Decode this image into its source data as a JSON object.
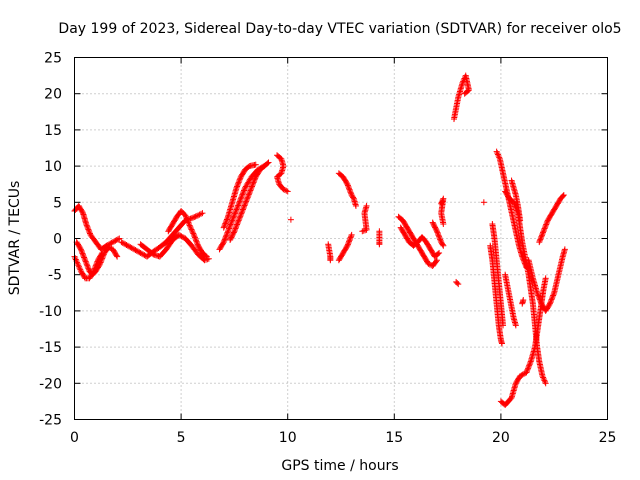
{
  "chart_data": {
    "type": "scatter",
    "title": "Day 199 of 2023, Sidereal Day-to-day VTEC variation (SDTVAR) for receiver olo5",
    "xlabel": "GPS time / hours",
    "ylabel": "SDTVAR / TECUs",
    "xlim": [
      0,
      25
    ],
    "ylim": [
      -25,
      25
    ],
    "xticks": [
      0,
      5,
      10,
      15,
      20,
      25
    ],
    "yticks": [
      -25,
      -20,
      -15,
      -10,
      -5,
      0,
      5,
      10,
      15,
      20,
      25
    ],
    "marker": "+",
    "color": "#ff0000",
    "grid": true,
    "tracks": [
      {
        "name": "track-01",
        "points": [
          [
            0.0,
            3.8
          ],
          [
            0.2,
            4.5
          ],
          [
            0.4,
            3.5
          ],
          [
            0.55,
            2.0
          ],
          [
            0.75,
            0.5
          ],
          [
            1.0,
            -0.5
          ],
          [
            1.25,
            -1.5
          ],
          [
            1.5,
            -1.0
          ],
          [
            1.8,
            -0.5
          ],
          [
            2.1,
            0.0
          ]
        ]
      },
      {
        "name": "track-02",
        "points": [
          [
            0.1,
            -0.5
          ],
          [
            0.3,
            -1.5
          ],
          [
            0.5,
            -3.0
          ],
          [
            0.7,
            -4.5
          ],
          [
            0.85,
            -5.0
          ],
          [
            1.0,
            -4.5
          ],
          [
            1.2,
            -3.5
          ],
          [
            1.4,
            -2.0
          ],
          [
            1.6,
            -1.2
          ],
          [
            1.8,
            -1.5
          ],
          [
            2.0,
            -2.5
          ]
        ]
      },
      {
        "name": "track-03",
        "points": [
          [
            0.0,
            -2.5
          ],
          [
            0.15,
            -3.5
          ],
          [
            0.3,
            -4.5
          ],
          [
            0.5,
            -5.5
          ],
          [
            0.7,
            -5.5
          ],
          [
            0.9,
            -4.5
          ],
          [
            1.1,
            -3.0
          ],
          [
            1.3,
            -2.0
          ]
        ]
      },
      {
        "name": "track-04",
        "points": [
          [
            2.2,
            -0.5
          ],
          [
            2.5,
            -1.0
          ],
          [
            2.8,
            -1.5
          ],
          [
            3.1,
            -2.0
          ],
          [
            3.4,
            -2.5
          ],
          [
            3.7,
            -1.8
          ],
          [
            4.0,
            -1.2
          ],
          [
            4.3,
            -0.5
          ],
          [
            4.6,
            0.5
          ],
          [
            4.9,
            1.5
          ],
          [
            5.2,
            2.5
          ],
          [
            5.5,
            2.8
          ],
          [
            5.8,
            3.2
          ],
          [
            6.0,
            3.5
          ]
        ]
      },
      {
        "name": "track-05",
        "points": [
          [
            3.1,
            -0.8
          ],
          [
            3.4,
            -1.5
          ],
          [
            3.7,
            -2.2
          ],
          [
            4.0,
            -2.5
          ],
          [
            4.3,
            -1.5
          ],
          [
            4.6,
            -0.2
          ],
          [
            4.9,
            0.5
          ],
          [
            5.2,
            0.0
          ],
          [
            5.5,
            -1.0
          ],
          [
            5.8,
            -2.2
          ],
          [
            6.1,
            -3.0
          ],
          [
            6.3,
            -2.8
          ]
        ]
      },
      {
        "name": "track-06",
        "points": [
          [
            4.4,
            1.0
          ],
          [
            4.6,
            2.0
          ],
          [
            4.8,
            3.0
          ],
          [
            5.0,
            3.8
          ],
          [
            5.2,
            3.2
          ],
          [
            5.4,
            1.8
          ],
          [
            5.6,
            0.5
          ],
          [
            5.8,
            -1.0
          ],
          [
            6.0,
            -2.0
          ],
          [
            6.2,
            -2.5
          ]
        ]
      },
      {
        "name": "track-07",
        "points": [
          [
            6.8,
            -1.5
          ],
          [
            7.0,
            -0.5
          ],
          [
            7.2,
            1.0
          ],
          [
            7.4,
            2.5
          ],
          [
            7.6,
            4.0
          ],
          [
            7.8,
            5.5
          ],
          [
            8.0,
            7.0
          ],
          [
            8.3,
            8.5
          ],
          [
            8.6,
            9.5
          ],
          [
            8.9,
            10.0
          ],
          [
            9.1,
            10.5
          ]
        ]
      },
      {
        "name": "track-08",
        "points": [
          [
            7.0,
            1.5
          ],
          [
            7.2,
            3.0
          ],
          [
            7.4,
            5.0
          ],
          [
            7.6,
            7.0
          ],
          [
            7.8,
            8.5
          ],
          [
            8.0,
            9.5
          ],
          [
            8.2,
            10.0
          ],
          [
            8.5,
            10.2
          ]
        ]
      },
      {
        "name": "track-09",
        "points": [
          [
            7.3,
            -0.2
          ],
          [
            7.5,
            1.0
          ],
          [
            7.7,
            2.5
          ],
          [
            7.9,
            4.0
          ],
          [
            8.1,
            5.5
          ],
          [
            8.3,
            7.0
          ],
          [
            8.5,
            8.5
          ],
          [
            8.7,
            9.5
          ],
          [
            8.9,
            10.0
          ]
        ]
      },
      {
        "name": "track-10",
        "points": [
          [
            9.5,
            11.5
          ],
          [
            9.7,
            11.0
          ],
          [
            9.8,
            10.0
          ],
          [
            9.7,
            9.0
          ],
          [
            9.5,
            8.5
          ],
          [
            9.6,
            7.5
          ],
          [
            9.8,
            6.8
          ],
          [
            10.0,
            6.5
          ]
        ]
      },
      {
        "name": "track-11",
        "points": [
          [
            10.15,
            2.6
          ]
        ]
      },
      {
        "name": "track-12",
        "points": [
          [
            11.9,
            -0.8
          ],
          [
            12.0,
            -2.5
          ],
          [
            12.0,
            -3.0
          ]
        ]
      },
      {
        "name": "track-13",
        "points": [
          [
            12.4,
            -3.0
          ],
          [
            12.6,
            -2.0
          ],
          [
            12.8,
            -1.0
          ],
          [
            13.0,
            0.5
          ]
        ]
      },
      {
        "name": "track-14",
        "points": [
          [
            12.4,
            9.0
          ],
          [
            12.6,
            8.5
          ],
          [
            12.8,
            7.5
          ],
          [
            13.0,
            6.0
          ],
          [
            13.1,
            5.5
          ],
          [
            13.2,
            4.5
          ]
        ]
      },
      {
        "name": "track-15",
        "points": [
          [
            13.5,
            1.0
          ],
          [
            13.7,
            1.2
          ],
          [
            13.6,
            3.5
          ],
          [
            13.7,
            4.5
          ]
        ]
      },
      {
        "name": "track-16",
        "points": [
          [
            14.3,
            1.0
          ],
          [
            14.3,
            -0.5
          ],
          [
            14.3,
            -0.8
          ]
        ]
      },
      {
        "name": "track-17",
        "points": [
          [
            15.2,
            3.0
          ],
          [
            15.4,
            2.5
          ],
          [
            15.6,
            1.5
          ],
          [
            15.8,
            0.5
          ],
          [
            16.0,
            -0.5
          ],
          [
            16.2,
            -1.5
          ],
          [
            16.4,
            -2.5
          ],
          [
            16.6,
            -3.5
          ],
          [
            16.8,
            -3.8
          ],
          [
            17.0,
            -3.0
          ]
        ]
      },
      {
        "name": "track-18",
        "points": [
          [
            15.3,
            1.5
          ],
          [
            15.5,
            0.5
          ],
          [
            15.7,
            -0.5
          ],
          [
            15.9,
            -1.0
          ],
          [
            16.1,
            -0.5
          ],
          [
            16.3,
            0.2
          ],
          [
            16.5,
            -0.5
          ],
          [
            16.7,
            -1.5
          ],
          [
            16.9,
            -2.5
          ],
          [
            17.1,
            -2.0
          ]
        ]
      },
      {
        "name": "track-19",
        "points": [
          [
            16.8,
            2.2
          ],
          [
            17.0,
            1.0
          ],
          [
            17.2,
            -0.5
          ],
          [
            17.3,
            -1.0
          ]
        ]
      },
      {
        "name": "track-20",
        "points": [
          [
            17.2,
            4.8
          ],
          [
            17.3,
            5.5
          ],
          [
            17.2,
            3.5
          ],
          [
            17.3,
            2.0
          ]
        ]
      },
      {
        "name": "track-21",
        "points": [
          [
            17.8,
            16.5
          ],
          [
            17.9,
            18.0
          ],
          [
            18.0,
            19.5
          ],
          [
            18.1,
            20.5
          ],
          [
            18.2,
            21.5
          ],
          [
            18.35,
            22.5
          ],
          [
            18.5,
            20.5
          ],
          [
            18.3,
            20.0
          ]
        ]
      },
      {
        "name": "track-22",
        "points": [
          [
            17.9,
            -6.0
          ],
          [
            18.0,
            -6.3
          ]
        ]
      },
      {
        "name": "track-23",
        "points": [
          [
            19.2,
            5.0
          ]
        ]
      },
      {
        "name": "track-24",
        "points": [
          [
            19.5,
            -1.0
          ],
          [
            19.6,
            -3.0
          ],
          [
            19.7,
            -6.0
          ],
          [
            19.8,
            -9.0
          ],
          [
            19.9,
            -12.0
          ],
          [
            20.0,
            -14.0
          ],
          [
            20.05,
            -14.5
          ]
        ]
      },
      {
        "name": "track-25",
        "points": [
          [
            19.8,
            12.0
          ],
          [
            19.95,
            11.0
          ],
          [
            20.1,
            9.0
          ],
          [
            20.25,
            7.0
          ],
          [
            20.4,
            5.0
          ],
          [
            20.55,
            3.0
          ],
          [
            20.7,
            1.0
          ],
          [
            20.85,
            -1.0
          ],
          [
            21.0,
            -2.5
          ],
          [
            21.2,
            -4.0
          ]
        ]
      },
      {
        "name": "track-26",
        "points": [
          [
            19.6,
            2.0
          ],
          [
            19.7,
            0.0
          ],
          [
            19.8,
            -3.0
          ],
          [
            19.9,
            -6.0
          ],
          [
            20.0,
            -9.0
          ],
          [
            20.1,
            -12.0
          ]
        ]
      },
      {
        "name": "track-27",
        "points": [
          [
            20.0,
            -22.5
          ],
          [
            20.2,
            -23.0
          ],
          [
            20.5,
            -22.0
          ],
          [
            20.7,
            -20.0
          ],
          [
            20.9,
            -19.0
          ],
          [
            21.2,
            -18.5
          ],
          [
            21.4,
            -17.0
          ],
          [
            21.6,
            -15.0
          ],
          [
            21.7,
            -13.0
          ],
          [
            21.8,
            -11.0
          ],
          [
            21.9,
            -9.0
          ],
          [
            22.0,
            -7.0
          ],
          [
            22.1,
            -5.5
          ]
        ]
      },
      {
        "name": "track-28",
        "points": [
          [
            20.2,
            6.5
          ],
          [
            20.4,
            5.5
          ],
          [
            20.6,
            5.0
          ],
          [
            20.8,
            3.5
          ],
          [
            20.9,
            1.5
          ],
          [
            21.0,
            -0.5
          ],
          [
            21.1,
            -2.0
          ],
          [
            21.2,
            -3.5
          ],
          [
            21.3,
            -5.0
          ],
          [
            21.4,
            -7.0
          ],
          [
            21.5,
            -9.0
          ],
          [
            21.6,
            -12.0
          ],
          [
            21.7,
            -15.0
          ],
          [
            21.8,
            -17.0
          ],
          [
            21.95,
            -19.0
          ],
          [
            22.1,
            -20.0
          ]
        ]
      },
      {
        "name": "track-29",
        "points": [
          [
            20.5,
            8.0
          ],
          [
            20.6,
            7.0
          ],
          [
            20.7,
            6.0
          ],
          [
            20.8,
            4.5
          ],
          [
            20.9,
            2.5
          ]
        ]
      },
      {
        "name": "track-30",
        "points": [
          [
            20.2,
            -5.0
          ],
          [
            20.3,
            -6.5
          ],
          [
            20.4,
            -8.0
          ],
          [
            20.5,
            -9.5
          ],
          [
            20.6,
            -11.0
          ],
          [
            20.7,
            -12.0
          ]
        ]
      },
      {
        "name": "track-31",
        "points": [
          [
            21.0,
            -9.0
          ],
          [
            21.05,
            -8.5
          ]
        ]
      },
      {
        "name": "track-32",
        "points": [
          [
            21.3,
            -3.0
          ],
          [
            21.5,
            -5.5
          ],
          [
            21.7,
            -7.5
          ],
          [
            21.9,
            -9.0
          ],
          [
            22.1,
            -10.0
          ],
          [
            22.3,
            -9.0
          ],
          [
            22.5,
            -7.5
          ],
          [
            22.7,
            -5.0
          ],
          [
            22.9,
            -2.5
          ],
          [
            23.0,
            -1.5
          ]
        ]
      },
      {
        "name": "track-33",
        "points": [
          [
            21.8,
            -0.5
          ],
          [
            22.0,
            1.0
          ],
          [
            22.2,
            2.5
          ],
          [
            22.4,
            3.5
          ],
          [
            22.6,
            4.5
          ],
          [
            22.8,
            5.5
          ],
          [
            22.95,
            6.0
          ]
        ]
      }
    ]
  }
}
